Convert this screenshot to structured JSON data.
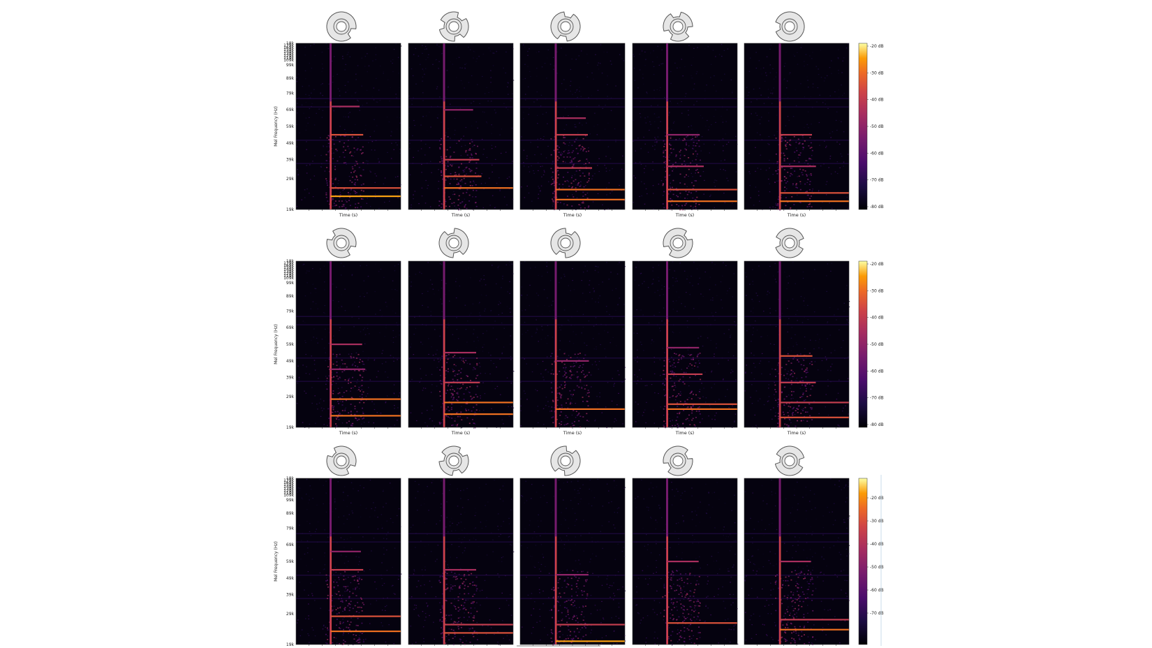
{
  "chart_data": {
    "type": "heatmap",
    "title": "",
    "xlabel": "Time (s)",
    "ylabel": "Mel Frequency (Hz)",
    "colormap": "inferno",
    "ytick_labels": [
      "19k",
      "29k",
      "39k",
      "49k",
      "59k",
      "69k",
      "79k",
      "89k",
      "99k",
      "109k",
      "119k",
      "129k",
      "139k",
      "149k",
      "159k",
      "169k",
      "179k",
      "18k"
    ],
    "colorbars": [
      {
        "row": 0,
        "ticks": [
          "-20 dB",
          "-30 dB",
          "-40 dB",
          "-50 dB",
          "-60 dB",
          "-70 dB",
          "-80 dB"
        ]
      },
      {
        "row": 1,
        "ticks": [
          "-20 dB",
          "-30 dB",
          "-40 dB",
          "-50 dB",
          "-60 dB",
          "-70 dB",
          "-80 dB"
        ]
      },
      {
        "row": 2,
        "ticks": [
          "-20 dB",
          "-30 dB",
          "-40 dB",
          "-50 dB",
          "-60 dB",
          "-70 dB"
        ]
      }
    ],
    "color_scale_db": [
      -80,
      -20
    ],
    "rows": 3,
    "cols": 5,
    "panels": [
      {
        "row": 0,
        "col": 0,
        "notches": 1,
        "onset": 0.33,
        "harmonics": [
          {
            "f": 0.08,
            "db": -25
          },
          {
            "f": 0.13,
            "db": -35
          },
          {
            "f": 0.45,
            "db": -35
          },
          {
            "f": 0.62,
            "db": -45
          }
        ]
      },
      {
        "row": 0,
        "col": 1,
        "notches": 3,
        "onset": 0.34,
        "harmonics": [
          {
            "f": 0.13,
            "db": -30
          },
          {
            "f": 0.2,
            "db": -35
          },
          {
            "f": 0.3,
            "db": -40
          },
          {
            "f": 0.6,
            "db": -50
          }
        ]
      },
      {
        "row": 0,
        "col": 2,
        "notches": 2,
        "onset": 0.34,
        "harmonics": [
          {
            "f": 0.06,
            "db": -30
          },
          {
            "f": 0.12,
            "db": -30
          },
          {
            "f": 0.25,
            "db": -40
          },
          {
            "f": 0.45,
            "db": -40
          },
          {
            "f": 0.55,
            "db": -45
          }
        ]
      },
      {
        "row": 0,
        "col": 3,
        "notches": 3,
        "onset": 0.33,
        "harmonics": [
          {
            "f": 0.05,
            "db": -30
          },
          {
            "f": 0.12,
            "db": -35
          },
          {
            "f": 0.26,
            "db": -45
          },
          {
            "f": 0.45,
            "db": -50
          }
        ]
      },
      {
        "row": 0,
        "col": 4,
        "notches": 1,
        "onset": 0.34,
        "harmonics": [
          {
            "f": 0.05,
            "db": -30
          },
          {
            "f": 0.1,
            "db": -35
          },
          {
            "f": 0.26,
            "db": -45
          },
          {
            "f": 0.45,
            "db": -40
          }
        ]
      },
      {
        "row": 1,
        "col": 0,
        "notches": 2,
        "onset": 0.33,
        "harmonics": [
          {
            "f": 0.07,
            "db": -30
          },
          {
            "f": 0.17,
            "db": -30
          },
          {
            "f": 0.35,
            "db": -50
          },
          {
            "f": 0.5,
            "db": -45
          }
        ]
      },
      {
        "row": 1,
        "col": 1,
        "notches": 2,
        "onset": 0.34,
        "harmonics": [
          {
            "f": 0.08,
            "db": -30
          },
          {
            "f": 0.15,
            "db": -30
          },
          {
            "f": 0.27,
            "db": -40
          },
          {
            "f": 0.45,
            "db": -45
          }
        ]
      },
      {
        "row": 1,
        "col": 2,
        "notches": 2,
        "onset": 0.34,
        "harmonics": [
          {
            "f": 0.11,
            "db": -30
          },
          {
            "f": 0.4,
            "db": -50
          }
        ]
      },
      {
        "row": 1,
        "col": 3,
        "notches": 2,
        "onset": 0.33,
        "harmonics": [
          {
            "f": 0.11,
            "db": -30
          },
          {
            "f": 0.14,
            "db": -35
          },
          {
            "f": 0.32,
            "db": -40
          },
          {
            "f": 0.48,
            "db": -50
          }
        ]
      },
      {
        "row": 1,
        "col": 4,
        "notches": 2,
        "onset": 0.34,
        "harmonics": [
          {
            "f": 0.06,
            "db": -35
          },
          {
            "f": 0.15,
            "db": -40
          },
          {
            "f": 0.27,
            "db": -40
          },
          {
            "f": 0.43,
            "db": -35
          }
        ]
      },
      {
        "row": 2,
        "col": 0,
        "notches": 2,
        "onset": 0.33,
        "harmonics": [
          {
            "f": 0.08,
            "db": -30
          },
          {
            "f": 0.17,
            "db": -35
          },
          {
            "f": 0.45,
            "db": -40
          },
          {
            "f": 0.56,
            "db": -50
          }
        ]
      },
      {
        "row": 2,
        "col": 1,
        "notches": 3,
        "onset": 0.34,
        "harmonics": [
          {
            "f": 0.07,
            "db": -35
          },
          {
            "f": 0.12,
            "db": -40
          },
          {
            "f": 0.45,
            "db": -45
          }
        ]
      },
      {
        "row": 2,
        "col": 2,
        "notches": 2,
        "onset": 0.34,
        "harmonics": [
          {
            "f": 0.02,
            "db": -25
          },
          {
            "f": 0.12,
            "db": -40
          },
          {
            "f": 0.42,
            "db": -50
          }
        ]
      },
      {
        "row": 2,
        "col": 3,
        "notches": 2,
        "onset": 0.33,
        "harmonics": [
          {
            "f": 0.13,
            "db": -35
          },
          {
            "f": 0.5,
            "db": -45
          }
        ]
      },
      {
        "row": 2,
        "col": 4,
        "notches": 2,
        "onset": 0.34,
        "harmonics": [
          {
            "f": 0.09,
            "db": -30
          },
          {
            "f": 0.15,
            "db": -40
          },
          {
            "f": 0.5,
            "db": -45
          }
        ]
      }
    ]
  }
}
